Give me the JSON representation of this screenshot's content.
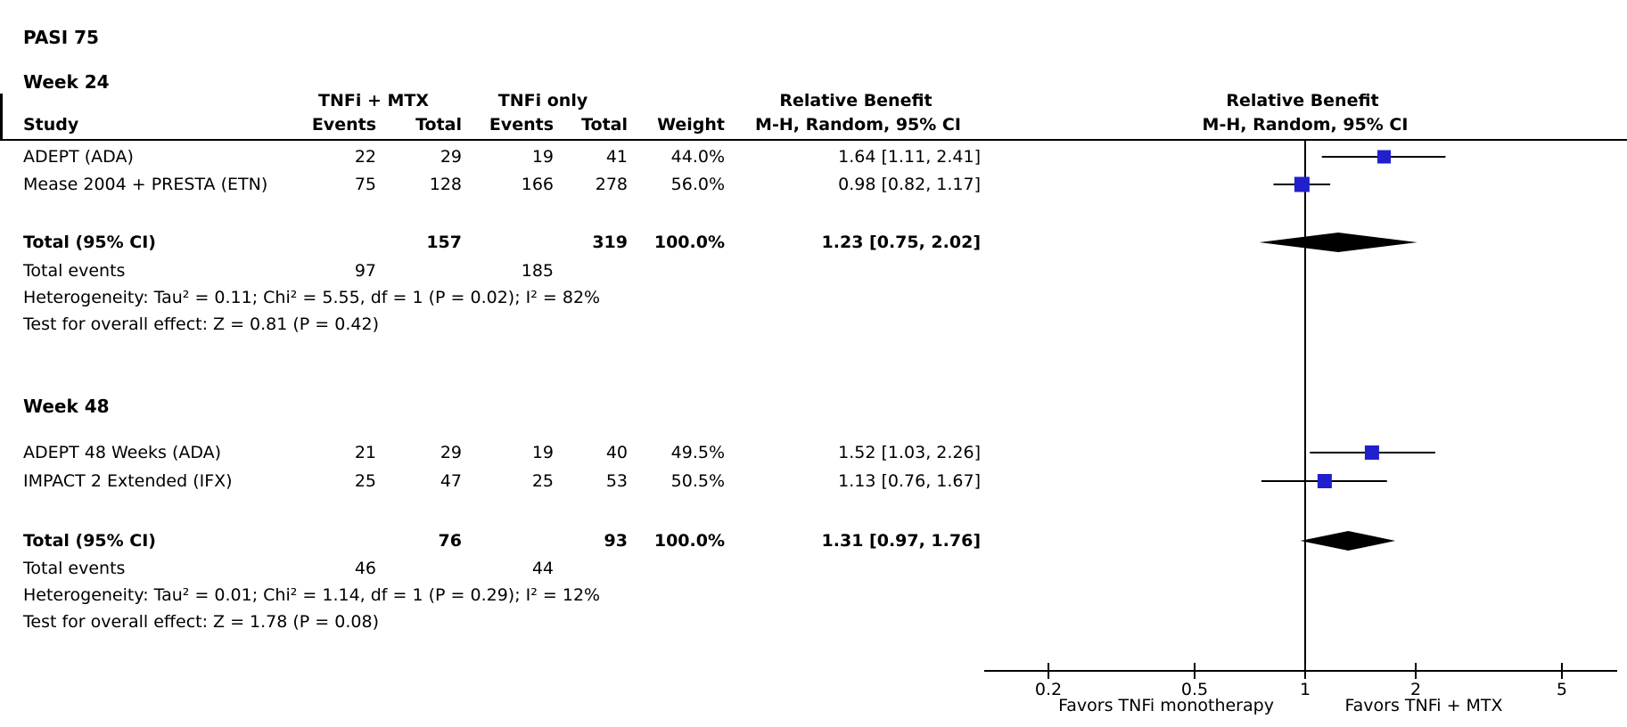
{
  "title": "PASI 75",
  "table": {
    "group_headers": {
      "experimental": "TNFi + MTX",
      "control": "TNFi only",
      "relative_benefit_numeric": "Relative Benefit",
      "relative_benefit_plot": "Relative Benefit"
    },
    "columns": {
      "study": "Study",
      "events1": "Events",
      "total1": "Total",
      "events2": "Events",
      "total2": "Total",
      "weight": "Weight",
      "ci": "M-H, Random, 95% CI",
      "ci_plot": "M-H, Random, 95% CI"
    }
  },
  "subgroups": [
    {
      "label": "Week 24",
      "studies": [
        {
          "name": "ADEPT (ADA)",
          "e1": "22",
          "t1": "29",
          "e2": "19",
          "t2": "41",
          "weight": "44.0%",
          "ci": "1.64 [1.11, 2.41]"
        },
        {
          "name": "Mease 2004 + PRESTA (ETN)",
          "e1": "75",
          "t1": "128",
          "e2": "166",
          "t2": "278",
          "weight": "56.0%",
          "ci": "0.98 [0.82, 1.17]"
        }
      ],
      "total_label": "Total (95% CI)",
      "total_t1": "157",
      "total_t2": "319",
      "total_weight": "100.0%",
      "total_ci": "1.23 [0.75, 2.02]",
      "total_events_label": "Total events",
      "total_e1": "97",
      "total_e2": "185",
      "heterogeneity": "Heterogeneity: Tau² = 0.11; Chi² = 5.55, df = 1 (P = 0.02); I² = 82%",
      "overall_effect": "Test for overall effect: Z = 0.81 (P = 0.42)"
    },
    {
      "label": "Week 48",
      "studies": [
        {
          "name": "ADEPT 48 Weeks (ADA)",
          "e1": "21",
          "t1": "29",
          "e2": "19",
          "t2": "40",
          "weight": "49.5%",
          "ci": "1.52 [1.03, 2.26]"
        },
        {
          "name": "IMPACT 2 Extended (IFX)",
          "e1": "25",
          "t1": "47",
          "e2": "25",
          "t2": "53",
          "weight": "50.5%",
          "ci": "1.13 [0.76, 1.67]"
        }
      ],
      "total_label": "Total (95% CI)",
      "total_t1": "76",
      "total_t2": "93",
      "total_weight": "100.0%",
      "total_ci": "1.31 [0.97, 1.76]",
      "total_events_label": "Total events",
      "total_e1": "46",
      "total_e2": "44",
      "heterogeneity": "Heterogeneity: Tau² = 0.01; Chi² = 1.14, df = 1 (P = 0.29); I² = 12%",
      "overall_effect": "Test for overall effect: Z = 1.78 (P = 0.08)"
    }
  ],
  "chart_data": {
    "type": "scatter",
    "subtype": "forest-plot",
    "title": "PASI 75",
    "effect_measure": "Relative Benefit, M-H, Random, 95% CI",
    "x_scale": "log",
    "axis_ticks": [
      0.2,
      0.5,
      1,
      2,
      5
    ],
    "xlim": [
      0.13,
      7
    ],
    "null_value": 1,
    "marker_color": "#2020CC",
    "axis_labels": {
      "left": "Favors TNFi monotherapy",
      "right": "Favors TNFi + MTX"
    },
    "series": [
      {
        "group": "Week 24",
        "studies": [
          {
            "name": "ADEPT (ADA)",
            "estimate": 1.64,
            "ci_low": 1.11,
            "ci_high": 2.41,
            "weight_pct": 44.0
          },
          {
            "name": "Mease 2004 + PRESTA (ETN)",
            "estimate": 0.98,
            "ci_low": 0.82,
            "ci_high": 1.17,
            "weight_pct": 56.0
          }
        ],
        "total": {
          "estimate": 1.23,
          "ci_low": 0.75,
          "ci_high": 2.02
        }
      },
      {
        "group": "Week 48",
        "studies": [
          {
            "name": "ADEPT 48 Weeks (ADA)",
            "estimate": 1.52,
            "ci_low": 1.03,
            "ci_high": 2.26,
            "weight_pct": 49.5
          },
          {
            "name": "IMPACT 2 Extended (IFX)",
            "estimate": 1.13,
            "ci_low": 0.76,
            "ci_high": 1.67,
            "weight_pct": 50.5
          }
        ],
        "total": {
          "estimate": 1.31,
          "ci_low": 0.97,
          "ci_high": 1.76
        }
      }
    ]
  }
}
